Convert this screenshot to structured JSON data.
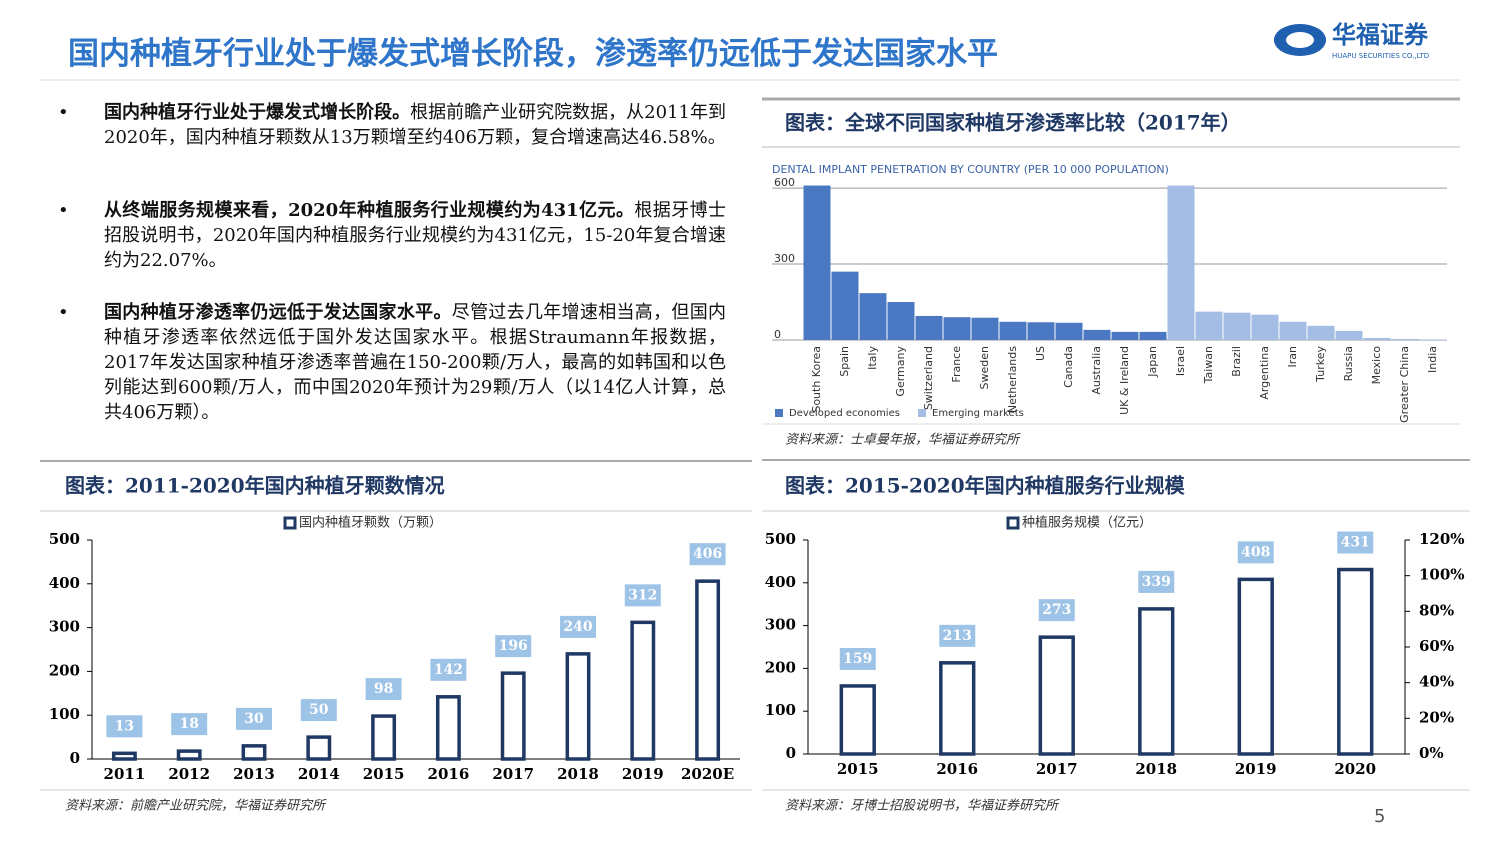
{
  "header": {
    "title": "国内种植牙行业处于爆发式增长阶段，渗透率仍远低于发达国家水平",
    "logo": "华福证券",
    "logo_sub": "HUAPU SECURITIES CO.,LTD"
  },
  "bullets": [
    {
      "bold": "国内种植牙行业处于爆发式增长阶段。",
      "text": "根据前瞻产业研究院数据，从2011年到2020年，国内种植牙颗数从13万颗增至约406万颗，复合增速高达46.58%。"
    },
    {
      "bold": "从终端服务规模来看，2020年种植服务行业规模约为431亿元。",
      "text": "根据牙博士招股说明书，2020年国内种植服务行业规模约为431亿元，15-20年复合增速约为22.07%。"
    },
    {
      "bold": "国内种植牙渗透率仍远低于发达国家水平。",
      "text": "尽管过去几年增速相当高，但国内种植牙渗透率依然远低于国外发达国家水平。根据Straumann年报数据，2017年发达国家种植牙渗透率普遍在150-200颗/万人，最高的如韩国和以色列能达到600颗/万人，而中国2020年预计为29颗/万人（以14亿人计算，总共406万颗）。"
    }
  ],
  "page_number": "5",
  "chart_data": [
    {
      "type": "bar",
      "title": "图表：全球不同国家种植牙渗透率比较（2017年）",
      "subtitle": "DENTAL IMPLANT PENETRATION BY COUNTRY (PER 10 000 POPULATION)",
      "source": "资料来源：士卓曼年报，华福证券研究所",
      "categories": [
        "South Korea",
        "Spain",
        "Italy",
        "Germany",
        "Switzerland",
        "France",
        "Sweden",
        "Netherlands",
        "US",
        "Canada",
        "Australia",
        "UK & Ireland",
        "Japan",
        "Israel",
        "Taiwan",
        "Brazil",
        "Argentina",
        "Iran",
        "Turkey",
        "Russia",
        "Mexico",
        "Greater China",
        "India"
      ],
      "series": [
        {
          "name": "Developed economies",
          "color": "#4a78c2",
          "values": [
            610,
            270,
            185,
            150,
            95,
            90,
            88,
            72,
            70,
            68,
            40,
            32,
            32,
            null,
            null,
            null,
            null,
            null,
            null,
            null,
            null,
            null,
            null
          ]
        },
        {
          "name": "Emerging markets",
          "color": "#a3bde4",
          "values": [
            null,
            null,
            null,
            null,
            null,
            null,
            null,
            null,
            null,
            null,
            null,
            null,
            null,
            610,
            112,
            108,
            100,
            72,
            56,
            36,
            8,
            4,
            2
          ]
        }
      ],
      "ylim": [
        0,
        620
      ],
      "yticks": [
        0,
        300,
        600
      ],
      "grid": true
    },
    {
      "type": "bar",
      "title": "图表：2011-2020年国内种植牙颗数情况",
      "source": "资料来源：前瞻产业研究院，华福证券研究所",
      "categories": [
        "2011",
        "2012",
        "2013",
        "2014",
        "2015",
        "2016",
        "2017",
        "2018",
        "2019",
        "2020E"
      ],
      "series": [
        {
          "name": "国内种植牙颗数（万颗）",
          "color": "#1f3864",
          "values": [
            13,
            18,
            30,
            50,
            98,
            142,
            196,
            240,
            312,
            406
          ]
        }
      ],
      "bar_style": "outline",
      "label_box_color": "#9dc3e6",
      "ylim": [
        0,
        500
      ],
      "yticks": [
        0,
        100,
        200,
        300,
        400,
        500
      ],
      "grid": false
    },
    {
      "type": "bar",
      "title": "图表：2015-2020年国内种植服务行业规模",
      "source": "资料来源：牙博士招股说明书，华福证券研究所",
      "categories": [
        "2015",
        "2016",
        "2017",
        "2018",
        "2019",
        "2020"
      ],
      "series": [
        {
          "name": "种植服务规模（亿元）",
          "color": "#1f3864",
          "values": [
            159,
            213,
            273,
            339,
            408,
            431
          ]
        }
      ],
      "bar_style": "outline",
      "label_box_color": "#9dc3e6",
      "ylim": [
        0,
        500
      ],
      "yticks": [
        0,
        100,
        200,
        300,
        400,
        500
      ],
      "y2lim": [
        0,
        120
      ],
      "y2ticks": [
        {
          "value": 0,
          "label": "0%"
        },
        {
          "value": 20,
          "label": "20%"
        },
        {
          "value": 40,
          "label": "40%"
        },
        {
          "value": 60,
          "label": "60%"
        },
        {
          "value": 80,
          "label": "80%"
        },
        {
          "value": 100,
          "label": "100%"
        },
        {
          "value": 120,
          "label": "120%"
        }
      ],
      "grid": false
    }
  ]
}
